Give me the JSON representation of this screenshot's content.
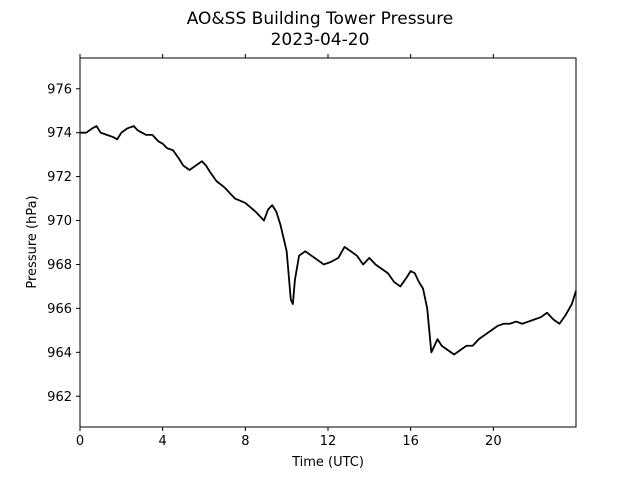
{
  "chart_data": {
    "type": "line",
    "title": "AO&SS Building Tower Pressure",
    "subtitle": "2023-04-20",
    "xlabel": "Time (UTC)",
    "ylabel": "Pressure (hPa)",
    "xlim": [
      0,
      24
    ],
    "ylim": [
      960.6,
      977.4
    ],
    "xticks": [
      0,
      4,
      8,
      12,
      16,
      20
    ],
    "xtick_labels": [
      "0",
      "4",
      "8",
      "12",
      "16",
      "20"
    ],
    "yticks": [
      962,
      964,
      966,
      968,
      970,
      972,
      974,
      976
    ],
    "ytick_labels": [
      "962",
      "964",
      "966",
      "968",
      "970",
      "972",
      "974",
      "976"
    ],
    "grid": false,
    "line_color": "#000000",
    "series": [
      {
        "x": [
          0,
          0.3,
          0.6,
          0.8,
          1.0,
          1.3,
          1.6,
          1.8,
          2.0,
          2.3,
          2.6,
          2.8,
          3.0,
          3.2,
          3.5,
          3.8,
          4.0,
          4.2,
          4.5,
          4.8,
          5.0,
          5.3,
          5.6,
          5.9,
          6.1,
          6.3,
          6.6,
          7.0,
          7.5,
          8.0,
          8.5,
          8.9,
          9.1,
          9.3,
          9.5,
          9.7,
          9.9,
          10.0,
          10.1,
          10.2,
          10.3,
          10.4,
          10.6,
          10.9,
          11.2,
          11.5,
          11.8,
          12.1,
          12.5,
          12.8,
          13.1,
          13.4,
          13.7,
          14.0,
          14.3,
          14.6,
          14.9,
          15.2,
          15.5,
          15.8,
          16.0,
          16.2,
          16.4,
          16.6,
          16.8,
          17.0,
          17.1,
          17.3,
          17.5,
          17.8,
          18.1,
          18.4,
          18.7,
          19.0,
          19.3,
          19.6,
          19.9,
          20.2,
          20.5,
          20.8,
          21.1,
          21.4,
          21.7,
          22.0,
          22.3,
          22.6,
          22.9,
          23.2,
          23.5,
          23.8,
          24.0
        ],
        "values": [
          974.0,
          974.0,
          974.2,
          974.3,
          974.0,
          973.9,
          973.8,
          973.7,
          974.0,
          974.2,
          974.3,
          974.1,
          974.0,
          973.9,
          973.9,
          973.6,
          973.5,
          973.3,
          973.2,
          972.8,
          972.5,
          972.3,
          972.5,
          972.7,
          972.5,
          972.2,
          971.8,
          971.5,
          971.0,
          970.8,
          970.4,
          970.0,
          970.5,
          970.7,
          970.4,
          969.8,
          969.0,
          968.6,
          967.5,
          966.4,
          966.2,
          967.3,
          968.4,
          968.6,
          968.4,
          968.2,
          968.0,
          968.1,
          968.3,
          968.8,
          968.6,
          968.4,
          968.0,
          968.3,
          968.0,
          967.8,
          967.6,
          967.2,
          967.0,
          967.4,
          967.7,
          967.6,
          967.2,
          966.9,
          966.0,
          964.0,
          964.2,
          964.6,
          964.3,
          964.1,
          963.9,
          964.1,
          964.3,
          964.3,
          964.6,
          964.8,
          965.0,
          965.2,
          965.3,
          965.3,
          965.4,
          965.3,
          965.4,
          965.5,
          965.6,
          965.8,
          965.5,
          965.3,
          965.7,
          966.2,
          966.8
        ]
      }
    ]
  }
}
